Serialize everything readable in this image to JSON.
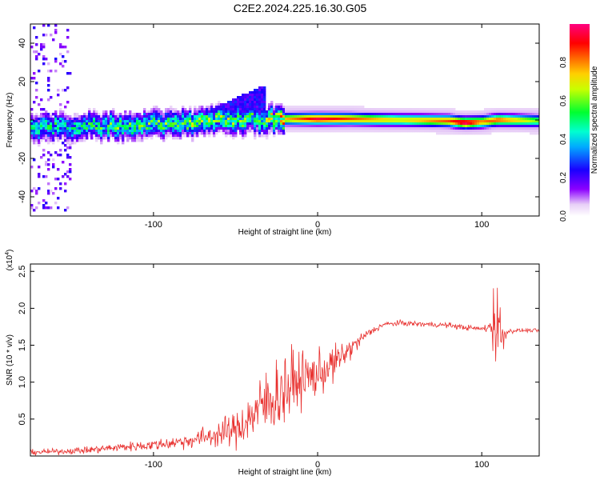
{
  "figure_title": "C2E2.2024.225.16.30.G05",
  "colors": {
    "snr_line": "#e8302e",
    "axis": "#000000",
    "background": "#ffffff"
  },
  "chart_data": [
    {
      "type": "heatmap",
      "title": "C2E2.2024.225.16.30.G05",
      "xlabel": "Height of straight line (km)",
      "ylabel": "Frequency (Hz)",
      "xlim": [
        -175,
        135
      ],
      "ylim": [
        -50,
        50
      ],
      "xticks": [
        -100,
        0,
        100
      ],
      "yticks": [
        -40,
        -20,
        0,
        20,
        40
      ],
      "colorbar": {
        "label": "Normalized spectral amplitude",
        "range": [
          0,
          1
        ],
        "ticks": [
          "0.0",
          "0.2",
          "0.4",
          "0.6",
          "0.8"
        ],
        "colormap": "rainbow (white-violet-blue-cyan-green-yellow-red-magenta)"
      },
      "ridge": {
        "description": "Doppler ridge near 0 Hz; scattered low-amplitude below ~-20 km, strong narrow ridge above",
        "x_km": [
          -175,
          -150,
          -125,
          -100,
          -75,
          -50,
          -35,
          -20,
          0,
          20,
          50,
          80,
          90,
          100,
          110,
          135
        ],
        "center_hz": [
          -4,
          -3.5,
          -3,
          -2.5,
          -1.5,
          0,
          0,
          0.5,
          0.5,
          0.5,
          0,
          -0.5,
          -1.5,
          -1,
          0,
          -0.5
        ],
        "peak_amplitude": [
          0.45,
          0.45,
          0.5,
          0.5,
          0.55,
          0.55,
          0.5,
          0.75,
          0.95,
          0.85,
          0.7,
          0.85,
          1.0,
          0.8,
          0.85,
          0.6
        ]
      }
    },
    {
      "type": "line",
      "xlabel": "Height of straight line (km)",
      "ylabel": "SNR (10 * v/v)",
      "scale_label": "(x10",
      "scale_exponent": "4",
      "xlim": [
        -175,
        135
      ],
      "ylim": [
        0,
        2.6
      ],
      "xticks": [
        -100,
        0,
        100
      ],
      "yticks": [
        "0.5",
        "1.0",
        "1.5",
        "2.0",
        "2.5"
      ],
      "series": [
        {
          "name": "SNR",
          "x": [
            -175,
            -160,
            -140,
            -120,
            -100,
            -80,
            -60,
            -50,
            -40,
            -30,
            -20,
            -10,
            0,
            10,
            20,
            30,
            40,
            50,
            60,
            70,
            80,
            90,
            100,
            105,
            108,
            110,
            112,
            115,
            120,
            135
          ],
          "y": [
            0.05,
            0.06,
            0.08,
            0.12,
            0.15,
            0.2,
            0.3,
            0.35,
            0.55,
            0.75,
            0.9,
            1.05,
            1.1,
            1.25,
            1.45,
            1.65,
            1.78,
            1.8,
            1.79,
            1.78,
            1.77,
            1.74,
            1.72,
            1.75,
            1.9,
            1.8,
            1.6,
            1.68,
            1.7,
            1.7
          ],
          "noise_amplitude": [
            0.03,
            0.03,
            0.04,
            0.05,
            0.06,
            0.08,
            0.15,
            0.2,
            0.3,
            0.4,
            0.45,
            0.3,
            0.25,
            0.2,
            0.12,
            0.05,
            0.03,
            0.03,
            0.03,
            0.03,
            0.03,
            0.03,
            0.03,
            0.06,
            0.6,
            0.5,
            0.3,
            0.04,
            0.02,
            0.02
          ]
        }
      ]
    }
  ]
}
